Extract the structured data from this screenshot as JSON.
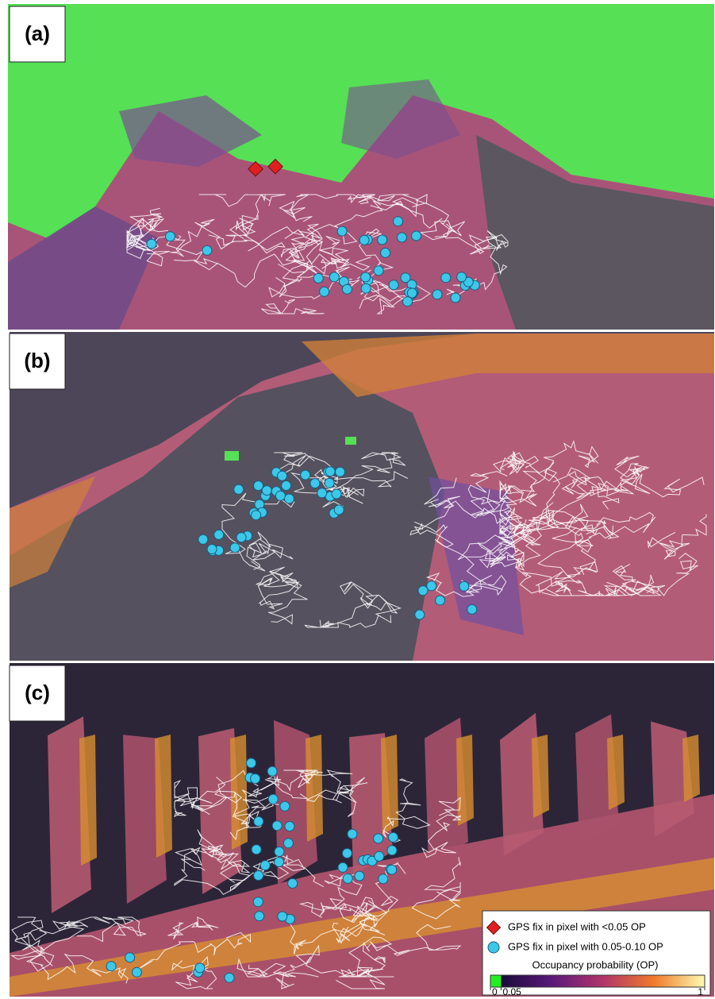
{
  "panels": [
    {
      "label": "(a)"
    },
    {
      "label": "(b)"
    },
    {
      "label": "(c)"
    }
  ],
  "legend": {
    "items": [
      {
        "label": "GPS fix in pixel with <0.05 OP"
      },
      {
        "label": "GPS fix in pixel with 0.05-0.10 OP"
      }
    ],
    "colorbar": {
      "title": "Occupancy probability (OP)",
      "ticks": [
        0,
        0.05,
        1
      ]
    }
  }
}
